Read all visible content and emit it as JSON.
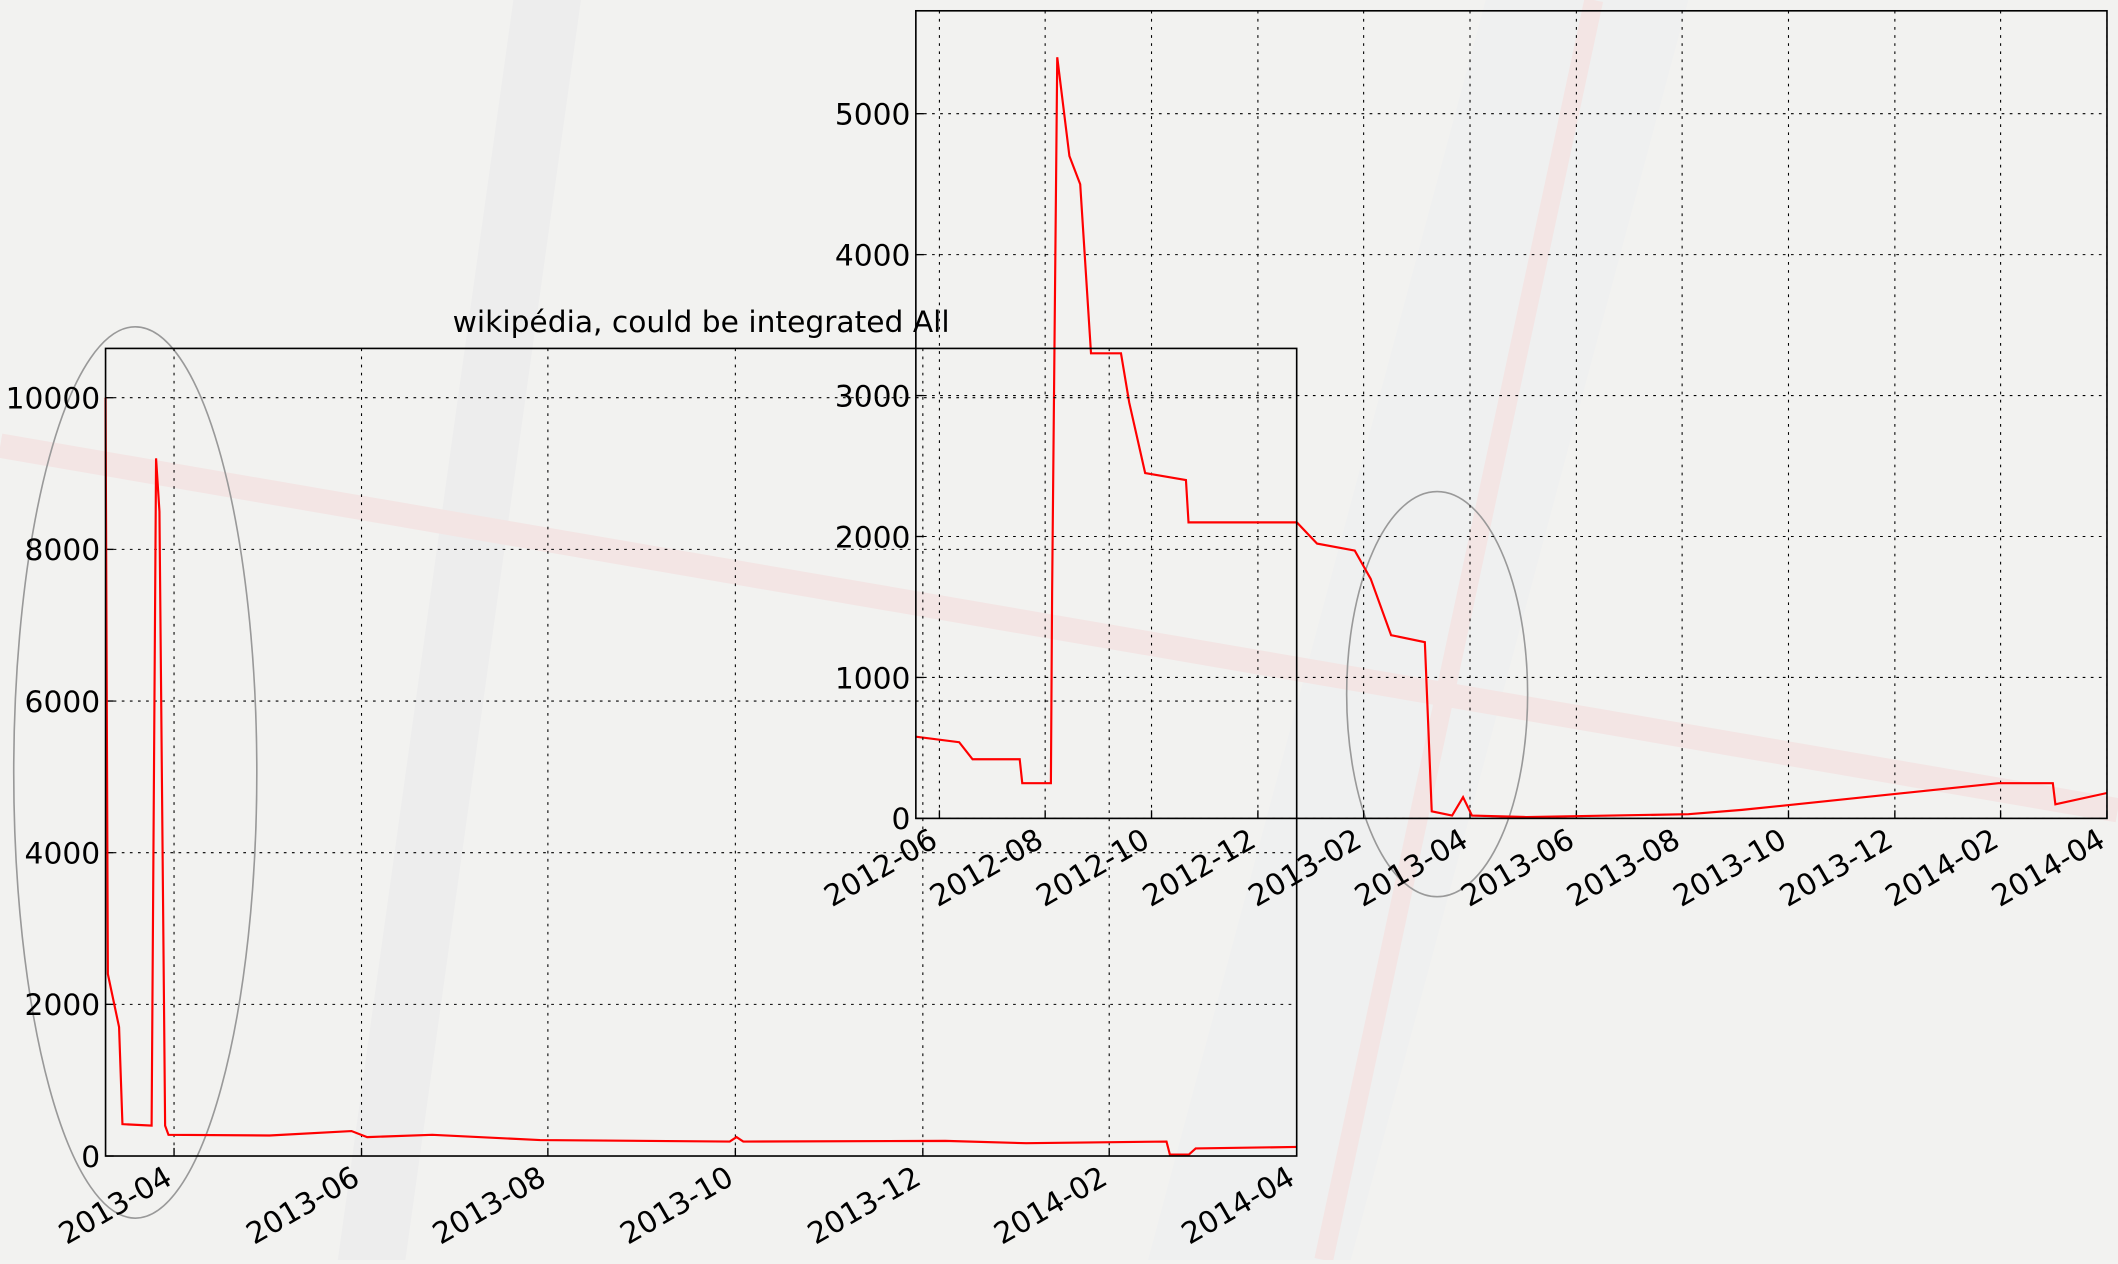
{
  "chart_data": [
    {
      "type": "line",
      "x": [
        2012.38,
        2012.448,
        2012.469,
        2012.543,
        2012.547,
        2012.592,
        2012.594,
        2012.602,
        2012.621,
        2012.638,
        2012.655,
        2012.702,
        2012.715,
        2012.74,
        2012.804,
        2012.808,
        2012.978,
        2013.01,
        2013.069,
        2013.094,
        2013.126,
        2013.179,
        2013.19,
        2013.222,
        2013.239,
        2013.253,
        2013.338,
        2013.593,
        2013.677,
        2013.762,
        2014.08,
        2014.165,
        2014.169,
        2014.25
      ],
      "series": [
        {
          "color": "#ff0000",
          "values": [
            580,
            540,
            420,
            420,
            250,
            250,
            1600,
            5400,
            4700,
            4500,
            3300,
            3300,
            2950,
            2450,
            2400,
            2100,
            2100,
            1950,
            1900,
            1700,
            1300,
            1250,
            50,
            20,
            150,
            20,
            10,
            30,
            60,
            100,
            250,
            250,
            100,
            180
          ]
        }
      ],
      "xlim": [
        2012.38,
        2014.25
      ],
      "xticks": [
        {
          "value": 2012.417,
          "label": "2012-06"
        },
        {
          "value": 2012.583,
          "label": "2012-08"
        },
        {
          "value": 2012.75,
          "label": "2012-10"
        },
        {
          "value": 2012.917,
          "label": "2012-12"
        },
        {
          "value": 2013.083,
          "label": "2013-02"
        },
        {
          "value": 2013.25,
          "label": "2013-04"
        },
        {
          "value": 2013.417,
          "label": "2013-06"
        },
        {
          "value": 2013.583,
          "label": "2013-08"
        },
        {
          "value": 2013.75,
          "label": "2013-10"
        },
        {
          "value": 2013.917,
          "label": "2013-12"
        },
        {
          "value": 2014.083,
          "label": "2014-02"
        },
        {
          "value": 2014.25,
          "label": "2014-04"
        }
      ],
      "ylim": [
        0,
        5730
      ],
      "yticks": [
        0,
        1000,
        2000,
        3000,
        4000,
        5000
      ],
      "grid": true
    },
    {
      "type": "line",
      "title": "wikipédia, could be integrated All",
      "x": [
        2013.189,
        2013.191,
        2013.201,
        2013.204,
        2013.23,
        2013.234,
        2013.237,
        2013.242,
        2013.245,
        2013.335,
        2013.408,
        2013.422,
        2013.48,
        2013.576,
        2013.745,
        2013.751,
        2013.757,
        2013.937,
        2014.009,
        2014.134,
        2014.137,
        2014.154,
        2014.16,
        2014.25
      ],
      "series": [
        {
          "color": "#ff0000",
          "values": [
            10000,
            2400,
            1700,
            420,
            400,
            9200,
            8500,
            400,
            280,
            270,
            330,
            250,
            280,
            210,
            190,
            250,
            190,
            200,
            170,
            190,
            20,
            20,
            100,
            120
          ]
        }
      ],
      "xlim": [
        2013.189,
        2014.25
      ],
      "xticks": [
        {
          "value": 2013.25,
          "label": "2013-04"
        },
        {
          "value": 2013.417,
          "label": "2013-06"
        },
        {
          "value": 2013.583,
          "label": "2013-08"
        },
        {
          "value": 2013.75,
          "label": "2013-10"
        },
        {
          "value": 2013.917,
          "label": "2013-12"
        },
        {
          "value": 2014.083,
          "label": "2014-02"
        },
        {
          "value": 2014.25,
          "label": "2014-04"
        }
      ],
      "ylim": [
        0,
        10650
      ],
      "yticks": [
        0,
        2000,
        4000,
        6000,
        8000,
        10000
      ],
      "grid": true
    }
  ]
}
